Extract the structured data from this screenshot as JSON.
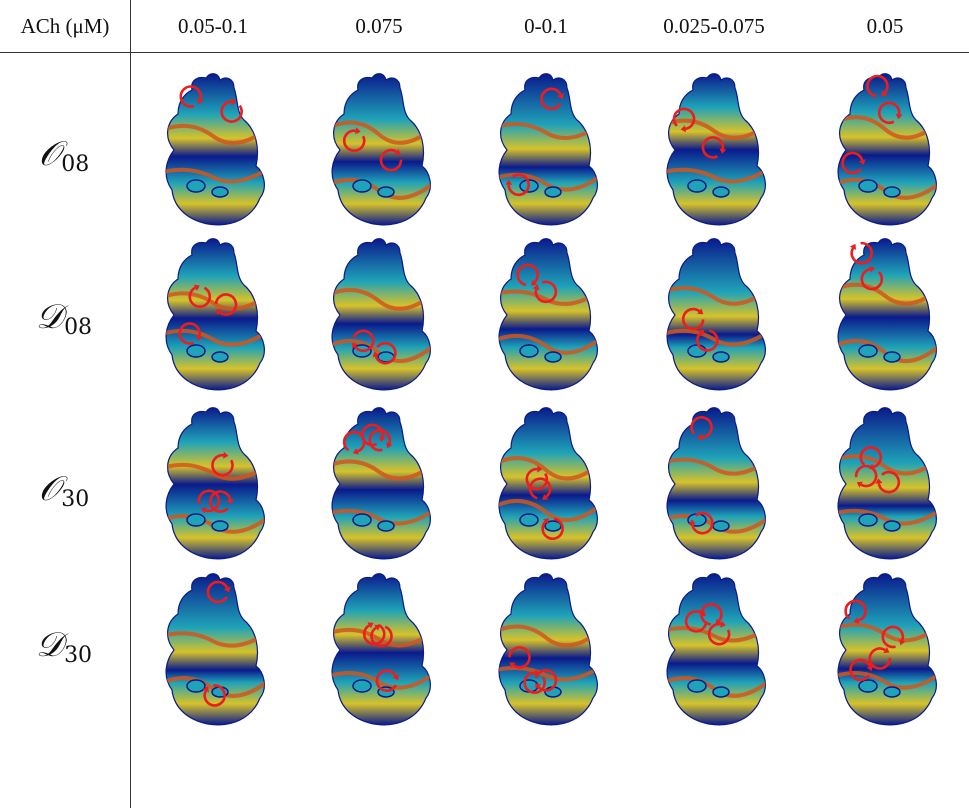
{
  "table": {
    "corner_label": "ACh (μM)",
    "columns": [
      "0.05-0.1",
      "0.075",
      "0-0.1",
      "0.025-0.075",
      "0.05"
    ],
    "rows": [
      {
        "letter": "𝒪",
        "sub": "08"
      },
      {
        "letter": "𝒟",
        "sub": "08"
      },
      {
        "letter": "𝒪",
        "sub": "30"
      },
      {
        "letter": "𝒟",
        "sub": "30"
      }
    ]
  },
  "colors": {
    "tissue_dark": "#0a1a8c",
    "tissue_mid": "#1fa3b8",
    "tissue_warm": "#d6c22a",
    "wavefront": "#d2561c",
    "rotor_marker": "#ee1c1c"
  },
  "rotor_counts": [
    [
      2,
      2,
      2,
      2,
      3
    ],
    [
      3,
      2,
      2,
      2,
      2
    ],
    [
      3,
      3,
      3,
      2,
      3
    ],
    [
      2,
      3,
      3,
      3,
      4
    ]
  ]
}
